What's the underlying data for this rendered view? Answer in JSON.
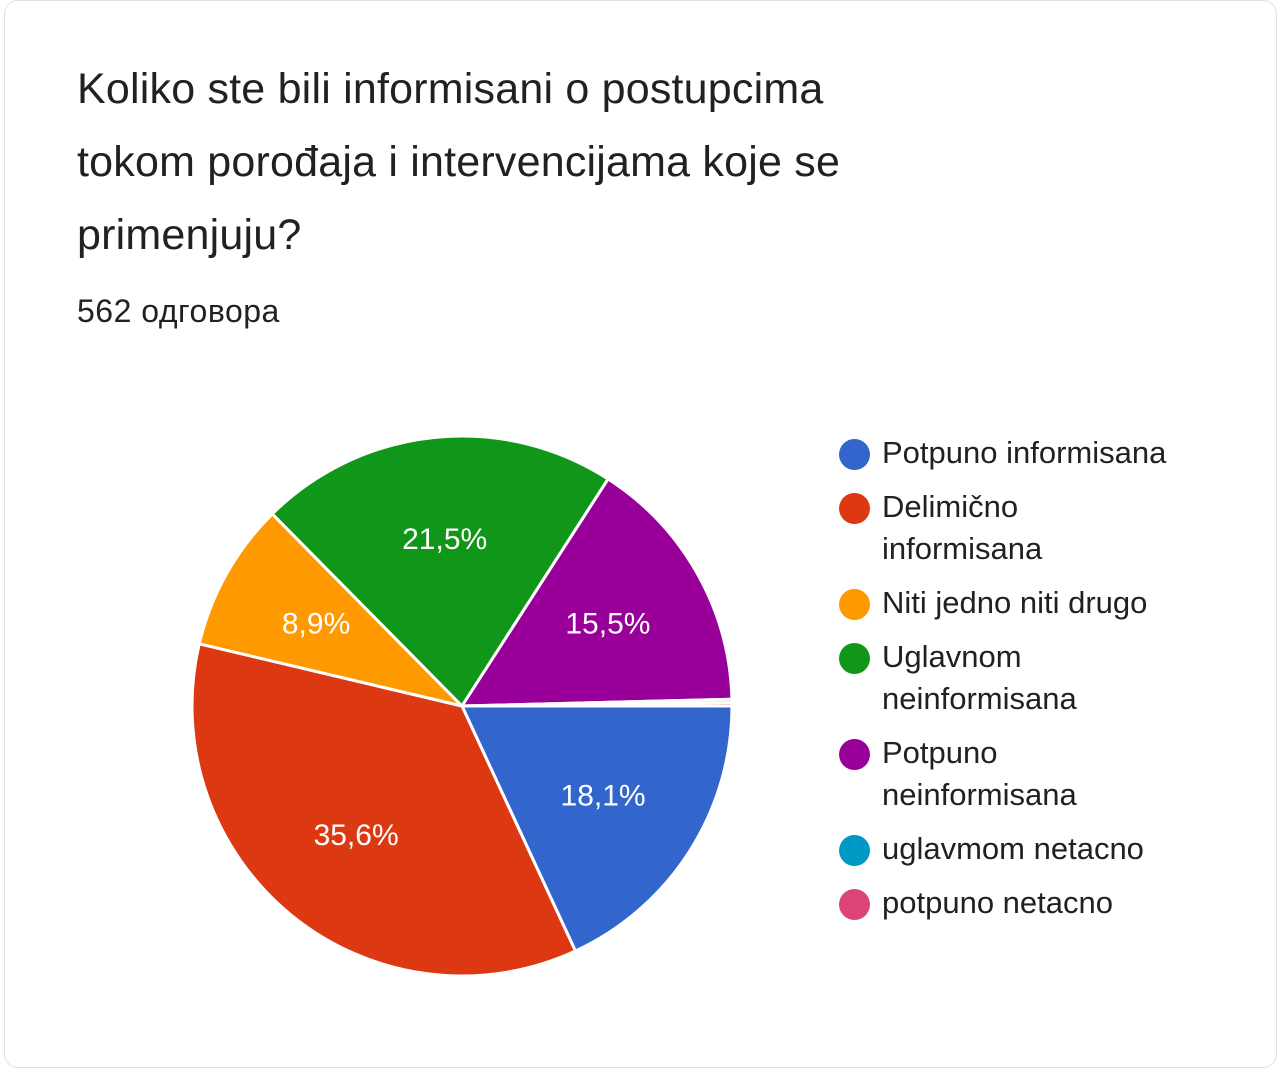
{
  "header": {
    "title": "Koliko ste bili informisani o postupcima tokom porođaja i intervencijama koje se primenjuju?",
    "response_count": "562 одговора"
  },
  "chart_data": {
    "type": "pie",
    "title": "Koliko ste bili informisani o postupcima tokom porođaja i intervencijama koje se primenjuju?",
    "categories": [
      "Potpuno informisana",
      "Delimično informisana",
      "Niti jedno niti drugo",
      "Uglavnom neinformisana",
      "Potpuno neinformisana",
      "uglavmom netacno",
      "potpuno netacno"
    ],
    "values": [
      18.1,
      35.6,
      8.9,
      21.5,
      15.5,
      0.2,
      0.2
    ],
    "value_labels": [
      "18,1%",
      "35,6%",
      "8,9%",
      "21,5%",
      "15,5%",
      "",
      ""
    ],
    "colors": [
      "#3366cc",
      "#dc3912",
      "#ff9900",
      "#109618",
      "#990099",
      "#0099c6",
      "#dd4477"
    ],
    "legend_position": "right"
  }
}
